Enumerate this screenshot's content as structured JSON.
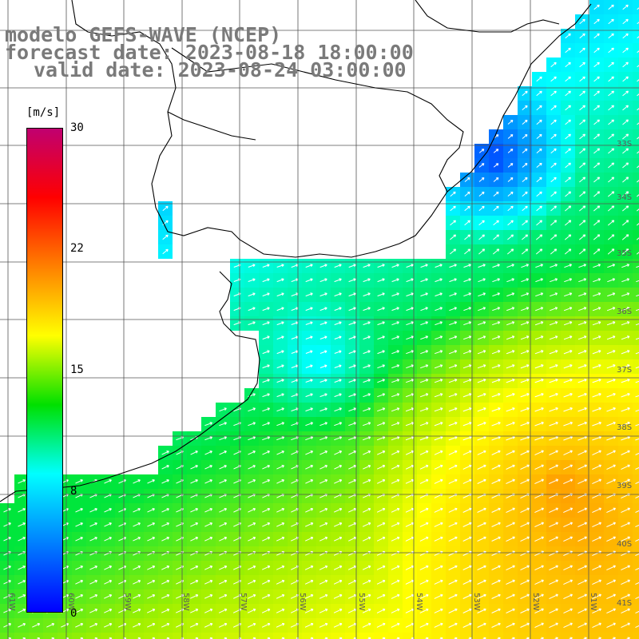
{
  "title": {
    "line1": "modelo GEFS-WAVE (NCEP)",
    "line2": "forecast date: 2023-08-18 18:00:00",
    "line3": "valid date: 2023-08-24 03:00:00"
  },
  "colorbar": {
    "unit": "[m/s]",
    "ticks": [
      "30",
      "22",
      "15",
      "8",
      "0"
    ],
    "colors": [
      "#c00070",
      "#ff0000",
      "#ff8000",
      "#ffff00",
      "#00e000",
      "#00ffff",
      "#0080ff",
      "#0000ff"
    ]
  },
  "lat_labels": [
    "33S",
    "34S",
    "35S",
    "36S",
    "37S",
    "38S",
    "39S",
    "40S",
    "41S"
  ],
  "lon_labels": [
    "61W",
    "60W",
    "59W",
    "58W",
    "57W",
    "56W",
    "55W",
    "54W",
    "53W",
    "52W",
    "51W"
  ]
}
